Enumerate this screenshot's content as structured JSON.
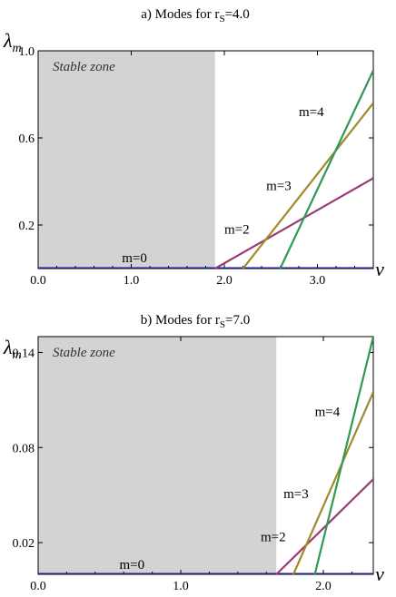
{
  "chart_data": [
    {
      "type": "line",
      "title": "a) Modes  for  r",
      "title_sub": "S",
      "title_suffix": "=4.0",
      "xlabel": "ν",
      "ylabel": "λ",
      "ylabel_sub": "m",
      "xlim": [
        0,
        3.6
      ],
      "ylim": [
        0,
        1.0
      ],
      "xticks": [
        {
          "v": 0,
          "label": "0.0"
        },
        {
          "v": 1,
          "label": "1.0"
        },
        {
          "v": 2,
          "label": "2.0"
        },
        {
          "v": 3,
          "label": "3.0"
        }
      ],
      "yticks": [
        {
          "v": 0.2,
          "label": "0.2"
        },
        {
          "v": 0.6,
          "label": "0.6"
        },
        {
          "v": 1.0,
          "label": "1.0"
        }
      ],
      "stable_zone": {
        "label": "Stable zone",
        "x_end": 1.9
      },
      "colors": {
        "m0": "#1f1f8c",
        "m2": "#9b3a78",
        "m3": "#a08a2a",
        "m4": "#2e9a55",
        "zone": "#d3d3d3"
      },
      "series": [
        {
          "name": "m=0",
          "x": [
            0,
            3.6
          ],
          "y": [
            0,
            0
          ]
        },
        {
          "name": "m=2",
          "x": [
            1.9,
            3.6
          ],
          "y": [
            0,
            0.415
          ]
        },
        {
          "name": "m=3",
          "x": [
            2.2,
            3.6
          ],
          "y": [
            0,
            0.76
          ]
        },
        {
          "name": "m=4",
          "x": [
            2.6,
            3.6
          ],
          "y": [
            0,
            0.91
          ]
        }
      ],
      "annotations": [
        {
          "text": "m=0",
          "x": 0.9,
          "y": 0.03
        },
        {
          "text": "m=2",
          "x": 2.0,
          "y": 0.16
        },
        {
          "text": "m=3",
          "x": 2.45,
          "y": 0.36
        },
        {
          "text": "m=4",
          "x": 2.8,
          "y": 0.7
        }
      ]
    },
    {
      "type": "line",
      "title": "b) Modes  for  r",
      "title_sub": "S",
      "title_suffix": "=7.0",
      "xlabel": "ν",
      "ylabel": "λ",
      "ylabel_sub": "m",
      "xlim": [
        0,
        2.35
      ],
      "ylim": [
        0,
        0.15
      ],
      "xticks": [
        {
          "v": 0,
          "label": "0.0"
        },
        {
          "v": 1,
          "label": "1.0"
        },
        {
          "v": 2,
          "label": "2.0"
        }
      ],
      "yticks": [
        {
          "v": 0.02,
          "label": "0.02"
        },
        {
          "v": 0.08,
          "label": "0.08"
        },
        {
          "v": 0.14,
          "label": "0.14"
        }
      ],
      "stable_zone": {
        "label": "Stable zone",
        "x_end": 1.67
      },
      "colors": {
        "m0": "#1f1f8c",
        "m2": "#9b3a78",
        "m3": "#a08a2a",
        "m4": "#2e9a55",
        "zone": "#d3d3d3"
      },
      "series": [
        {
          "name": "m=0",
          "x": [
            0,
            2.35
          ],
          "y": [
            0,
            0
          ]
        },
        {
          "name": "m=2",
          "x": [
            1.67,
            2.35
          ],
          "y": [
            0,
            0.06
          ]
        },
        {
          "name": "m=3",
          "x": [
            1.79,
            2.35
          ],
          "y": [
            0,
            0.115
          ]
        },
        {
          "name": "m=4",
          "x": [
            1.94,
            2.35
          ],
          "y": [
            0,
            0.15
          ]
        }
      ],
      "annotations": [
        {
          "text": "m=0",
          "x": 0.57,
          "y": 0.0035
        },
        {
          "text": "m=2",
          "x": 1.56,
          "y": 0.021
        },
        {
          "text": "m=3",
          "x": 1.72,
          "y": 0.048
        },
        {
          "text": "m=4",
          "x": 1.94,
          "y": 0.1
        }
      ]
    }
  ]
}
